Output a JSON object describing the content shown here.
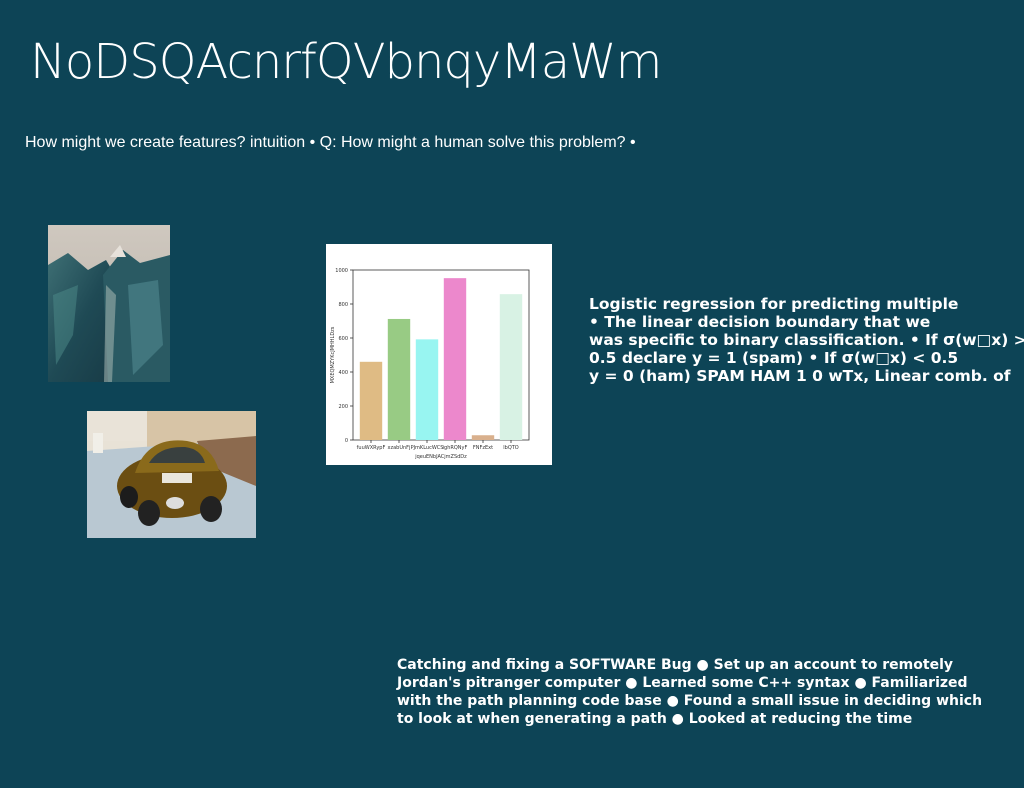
{
  "slide": {
    "title": "NoDSQAcnrfQVbnqyMaWm",
    "subtitle": "How might we create features? intuition • Q: How might a human solve this problem? •",
    "side_text": "Logistic regression for predicting multiple\n• The linear decision boundary that we\nwas specific to binary classification. • If σ(w□x) >\n0.5 declare y = 1 (spam) • If σ(w□x) < 0.5\ny = 0 (ham) SPAM HAM 1 0 wTx, Linear comb. of",
    "bottom_text": "Catching and fixing a SOFTWARE Bug ● Set up an account to remotely\nJordan's pitranger computer ● Learned some C++ syntax ● Familiarized\nwith the path planning code base ● Found a small issue in deciding which\nto look at when generating a path ● Looked at reducing the time"
  },
  "chart_data": {
    "type": "bar",
    "categories": [
      "fuuWXRypF",
      "xzabUnFj",
      "PJmKLucWCS",
      "ighRQNyF",
      "FNFzExt",
      "lbQTO"
    ],
    "values": [
      460,
      712,
      592,
      952,
      28,
      858
    ],
    "colors": [
      "#dfbb84",
      "#98cb84",
      "#98f5f1",
      "#ec88cc",
      "#d9b08d",
      "#d8f2e4"
    ],
    "xlabel": "jqeuENbJACjmZSdDz",
    "ylabel": "MXEQMZYKcJMHHLDzs",
    "ylim": [
      0,
      1000
    ],
    "yticks": [
      0,
      200,
      400,
      600,
      800,
      1000
    ]
  }
}
